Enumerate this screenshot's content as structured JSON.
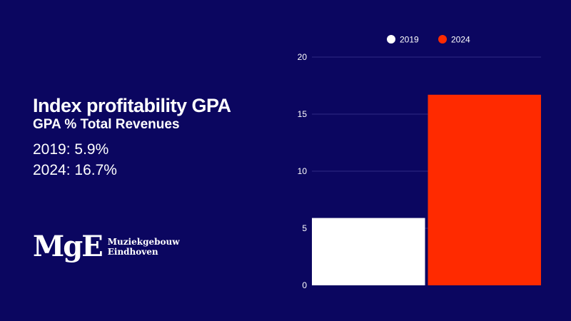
{
  "headline": {
    "title": "Index profitability GPA",
    "subtitle": "GPA % Total Revenues",
    "stats": [
      "2019: 5.9%",
      "2024: 16.7%"
    ]
  },
  "logo": {
    "mark": "MgE",
    "name_line1": "Muziekgebouw",
    "name_line2": "Eindhoven"
  },
  "chart_data": {
    "type": "bar",
    "categories": [
      "2019",
      "2024"
    ],
    "series": [
      {
        "name": "2019",
        "values": [
          5.9,
          null
        ],
        "color": "#ffffff"
      },
      {
        "name": "2024",
        "values": [
          null,
          16.7
        ],
        "color": "#ff2a00"
      }
    ],
    "y_ticks": [
      0,
      5,
      10,
      15,
      20
    ],
    "ylim": [
      0,
      20
    ],
    "grid": true,
    "legend": "top"
  }
}
